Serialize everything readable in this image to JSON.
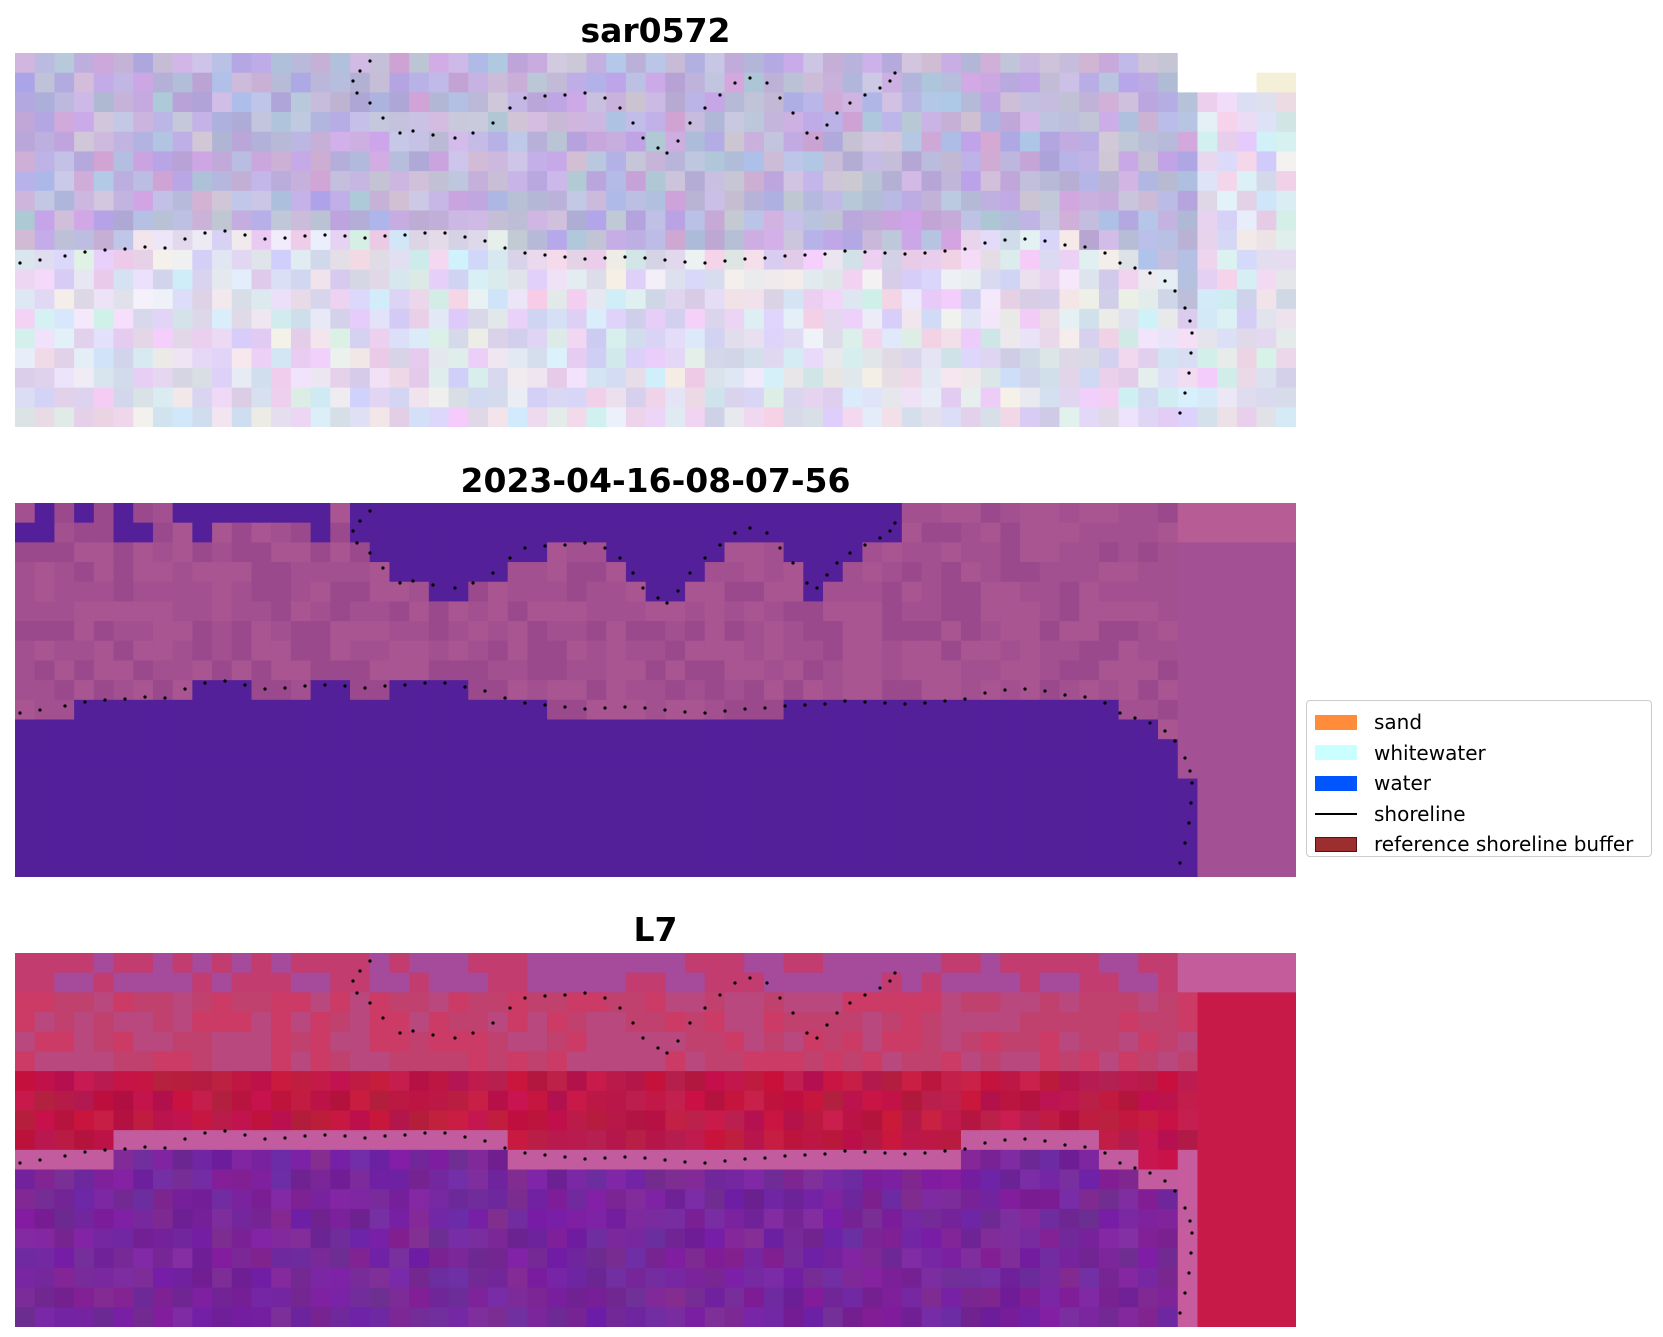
{
  "panels": [
    {
      "title": "sar0572",
      "palette": {
        "base": [
          200,
          190,
          228
        ],
        "pixel_jitter": 38,
        "description_key": "pastel-lavender"
      }
    },
    {
      "title": "2023-04-16-08-07-56",
      "palette": {
        "water": "#53209A",
        "land": "#9A4A8C",
        "land_light": "#B85C96"
      }
    },
    {
      "title": "L7",
      "palette": {
        "land": "#B71A48",
        "land_light": "#C8306A",
        "water": "#7A2A9C",
        "edge": "#C45C9C"
      }
    }
  ],
  "legend": {
    "items": [
      {
        "label": "sand",
        "color": "#FF8C3A",
        "kind": "patch"
      },
      {
        "label": "whitewater",
        "color": "#C9FFFF",
        "kind": "patch"
      },
      {
        "label": "water",
        "color": "#0055FF",
        "kind": "patch"
      },
      {
        "label": "shoreline",
        "color": "#000000",
        "kind": "line"
      },
      {
        "label": "reference shoreline buffer",
        "color": "#9C2E30",
        "kind": "patch",
        "edgecolor": "#5a1010"
      }
    ]
  }
}
